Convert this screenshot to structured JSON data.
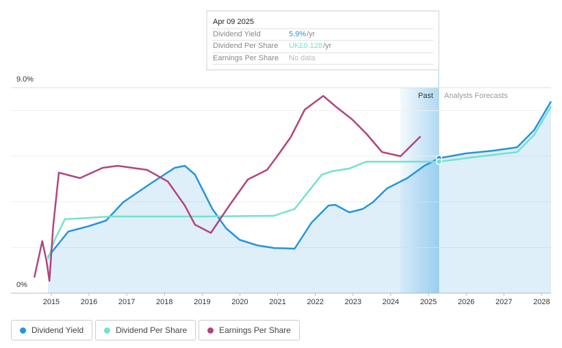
{
  "chart_data": {
    "type": "line",
    "xlim": [
      2013.93,
      2028.25
    ],
    "xticks": [
      2015,
      2016,
      2017,
      2018,
      2019,
      2020,
      2021,
      2022,
      2023,
      2024,
      2025,
      2026,
      2027,
      2028
    ],
    "ylim": [
      0,
      9
    ],
    "yticks": [
      {
        "value": 0,
        "label": "0%"
      },
      {
        "value": 9,
        "label": "9.0%"
      }
    ],
    "gridlines": [
      2,
      4,
      6,
      8
    ],
    "past_region": [
      2024.25,
      2025.27
    ],
    "past_label": "Past",
    "forecast_label": "Analysts Forecasts",
    "series": [
      {
        "name": "Dividend Yield",
        "color": "#2394df",
        "area": true,
        "x": [
          2014.91,
          2015.45,
          2016.0,
          2016.45,
          2016.91,
          2017.63,
          2018.27,
          2018.54,
          2018.81,
          2019.27,
          2019.63,
          2019.99,
          2020.45,
          2020.9,
          2021.45,
          2021.9,
          2022.35,
          2022.53,
          2022.9,
          2023.26,
          2023.53,
          2023.9,
          2024.44,
          2024.89,
          2025.28,
          2025.98,
          2026.71,
          2027.35,
          2027.8,
          2028.25
        ],
        "values": [
          1.59,
          2.7,
          2.94,
          3.18,
          3.99,
          4.8,
          5.49,
          5.58,
          5.19,
          3.69,
          2.85,
          2.34,
          2.1,
          1.98,
          1.95,
          3.09,
          3.84,
          3.87,
          3.54,
          3.69,
          3.99,
          4.59,
          5.04,
          5.58,
          5.91,
          6.12,
          6.24,
          6.39,
          7.14,
          8.4
        ]
      },
      {
        "name": "Dividend Per Share",
        "color": "#6fe3cf",
        "x": [
          2014.91,
          2015.09,
          2015.36,
          2016.0,
          2016.54,
          2019.08,
          2020.9,
          2021.45,
          2021.81,
          2022.17,
          2022.44,
          2022.9,
          2023.35,
          2025.28,
          2025.98,
          2026.71,
          2027.35,
          2027.8,
          2028.25
        ],
        "values": [
          1.5,
          2.34,
          3.24,
          3.3,
          3.36,
          3.36,
          3.39,
          3.69,
          4.44,
          5.19,
          5.34,
          5.46,
          5.76,
          5.76,
          5.91,
          6.06,
          6.18,
          6.93,
          8.19
        ]
      },
      {
        "name": "Earnings Per Share",
        "color": "#b2437f",
        "x": [
          2014.55,
          2014.76,
          2014.87,
          2014.95,
          2015.05,
          2015.2,
          2015.76,
          2016.36,
          2016.76,
          2017.54,
          2018.09,
          2018.54,
          2018.81,
          2019.23,
          2019.72,
          2020.21,
          2020.72,
          2020.99,
          2021.35,
          2021.72,
          2022.21,
          2022.53,
          2022.99,
          2023.35,
          2023.77,
          2024.26,
          2024.79
        ],
        "values": [
          0.69,
          2.28,
          1.44,
          0.54,
          2.94,
          5.28,
          5.04,
          5.49,
          5.58,
          5.4,
          4.89,
          3.84,
          3.0,
          2.64,
          3.84,
          4.98,
          5.4,
          6.0,
          6.84,
          8.04,
          8.64,
          8.19,
          7.59,
          6.99,
          6.18,
          6.0,
          6.87
        ]
      }
    ]
  },
  "tooltip": {
    "date": "Apr 09 2025",
    "rows": [
      {
        "label": "Dividend Yield",
        "value": "5.9%",
        "unit": "/yr"
      },
      {
        "label": "Dividend Per Share",
        "value": "UK£0.128",
        "unit": "/yr"
      },
      {
        "label": "Earnings Per Share",
        "value": "No data"
      }
    ]
  }
}
